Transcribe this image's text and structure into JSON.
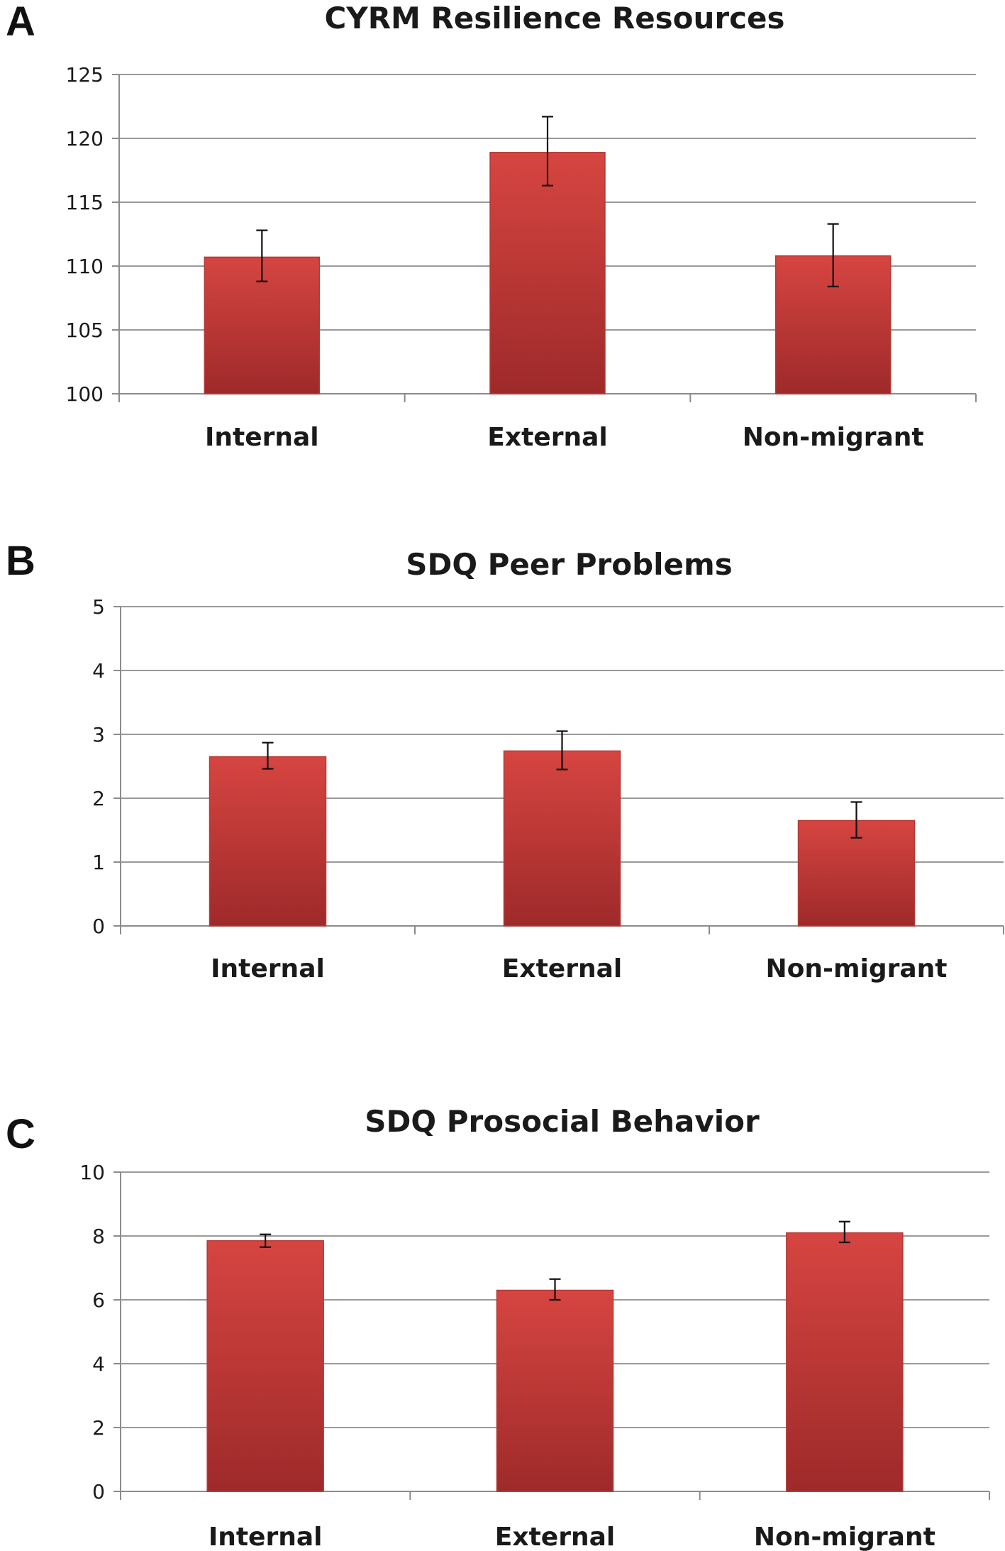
{
  "colors": {
    "bar_top": "#d64541",
    "bar_bottom": "#9e2a2a",
    "bar_edge": "#b23a36",
    "grid": "#9a9a9a",
    "axis": "#8c8c8c",
    "error_bar": "#111111"
  },
  "chart_data": [
    {
      "panel_label": "A",
      "type": "bar",
      "title": "CYRM Resilience Resources",
      "categories": [
        "Internal",
        "External",
        "Non-migrant"
      ],
      "values": [
        110.7,
        118.9,
        110.8
      ],
      "error_low": [
        108.8,
        116.3,
        108.4
      ],
      "error_high": [
        112.8,
        121.7,
        113.3
      ],
      "ylim": [
        100,
        125
      ],
      "yticks": [
        100,
        105,
        110,
        115,
        120,
        125
      ],
      "xlabel": "",
      "ylabel": "",
      "grid": true
    },
    {
      "panel_label": "B",
      "type": "bar",
      "title": "SDQ Peer Problems",
      "categories": [
        "Internal",
        "External",
        "Non-migrant"
      ],
      "values": [
        2.65,
        2.74,
        1.65
      ],
      "error_low": [
        2.46,
        2.45,
        1.38
      ],
      "error_high": [
        2.87,
        3.05,
        1.94
      ],
      "ylim": [
        0,
        5
      ],
      "yticks": [
        0,
        1,
        2,
        3,
        4,
        5
      ],
      "xlabel": "",
      "ylabel": "",
      "grid": true
    },
    {
      "panel_label": "C",
      "type": "bar",
      "title": "SDQ Prosocial Behavior",
      "categories": [
        "Internal",
        "External",
        "Non-migrant"
      ],
      "values": [
        7.85,
        6.3,
        8.1
      ],
      "error_low": [
        7.65,
        6.0,
        7.8
      ],
      "error_high": [
        8.05,
        6.65,
        8.45
      ],
      "ylim": [
        0,
        10
      ],
      "yticks": [
        0,
        2,
        4,
        6,
        8,
        10
      ],
      "xlabel": "",
      "ylabel": "",
      "grid": true
    }
  ]
}
